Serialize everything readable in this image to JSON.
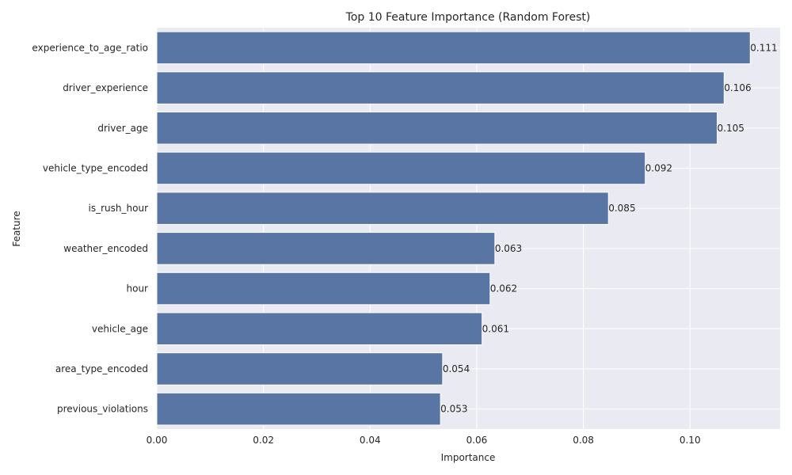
{
  "chart_data": {
    "type": "bar",
    "orientation": "horizontal",
    "title": "Top 10 Feature Importance (Random Forest)",
    "xlabel": "Importance",
    "ylabel": "Feature",
    "categories": [
      "experience_to_age_ratio",
      "driver_experience",
      "driver_age",
      "vehicle_type_encoded",
      "is_rush_hour",
      "weather_encoded",
      "hour",
      "vehicle_age",
      "area_type_encoded",
      "previous_violations"
    ],
    "values": [
      0.1113,
      0.1064,
      0.1051,
      0.0916,
      0.0847,
      0.0634,
      0.0625,
      0.061,
      0.0536,
      0.0532
    ],
    "data_labels": [
      "0.111",
      "0.106",
      "0.105",
      "0.092",
      "0.085",
      "0.063",
      "0.062",
      "0.061",
      "0.054",
      "0.053"
    ],
    "xlim": [
      0,
      0.1169
    ],
    "xticks": [
      0.0,
      0.02,
      0.04,
      0.06,
      0.08,
      0.1
    ],
    "xtick_labels": [
      "0.00",
      "0.02",
      "0.04",
      "0.06",
      "0.08",
      "0.10"
    ],
    "grid": true,
    "colors": {
      "bar": "#5975a4",
      "plot_background": "#eaeaf2",
      "grid": "#ffffff"
    }
  }
}
